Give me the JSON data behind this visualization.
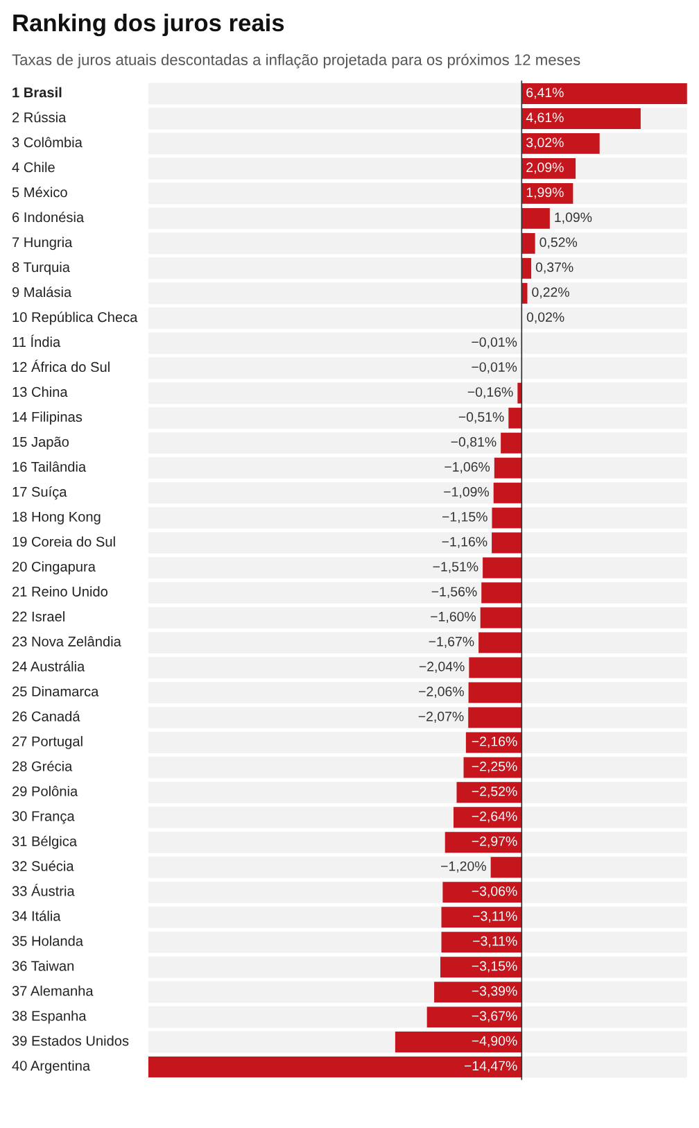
{
  "chart_data": {
    "type": "bar",
    "orientation": "horizontal",
    "title": "Ranking dos juros reais",
    "subtitle": "Taxas de juros atuais descontadas a inflação projetada para os próximos 12 meses",
    "categories": [
      "1 Brasil",
      "2 Rússia",
      "3 Colômbia",
      "4 Chile",
      "5 México",
      "6 Indonésia",
      "7 Hungria",
      "8 Turquia",
      "9 Malásia",
      "10 República Checa",
      "11 Índia",
      "12 África do Sul",
      "13 China",
      "14 Filipinas",
      "15 Japão",
      "16 Tailândia",
      "17 Suíça",
      "18 Hong Kong",
      "19 Coreia do Sul",
      "20 Cingapura",
      "21 Reino Unido",
      "22 Israel",
      "23 Nova Zelândia",
      "24 Austrália",
      "25 Dinamarca",
      "26 Canadá",
      "27 Portugal",
      "28 Grécia",
      "29 Polônia",
      "30 França",
      "31 Bélgica",
      "32 Suécia",
      "33 Áustria",
      "34 Itália",
      "35 Holanda",
      "36 Taiwan",
      "37 Alemanha",
      "38 Espanha",
      "39 Estados Unidos",
      "40 Argentina"
    ],
    "values": [
      6.41,
      4.61,
      3.02,
      2.09,
      1.99,
      1.09,
      0.52,
      0.37,
      0.22,
      0.02,
      -0.01,
      -0.01,
      -0.16,
      -0.51,
      -0.81,
      -1.06,
      -1.09,
      -1.15,
      -1.16,
      -1.51,
      -1.56,
      -1.6,
      -1.67,
      -2.04,
      -2.06,
      -2.07,
      -2.16,
      -2.25,
      -2.52,
      -2.64,
      -2.97,
      -1.2,
      -3.06,
      -3.11,
      -3.11,
      -3.15,
      -3.39,
      -3.67,
      -4.9,
      -14.47
    ],
    "value_labels": [
      "6,41%",
      "4,61%",
      "3,02%",
      "2,09%",
      "1,99%",
      "1,09%",
      "0,52%",
      "0,37%",
      "0,22%",
      "0,02%",
      "−0,01%",
      "−0,01%",
      "−0,16%",
      "−0,51%",
      "−0,81%",
      "−1,06%",
      "−1,09%",
      "−1,15%",
      "−1,16%",
      "−1,51%",
      "−1,56%",
      "−1,60%",
      "−1,67%",
      "−2,04%",
      "−2,06%",
      "−2,07%",
      "−2,16%",
      "−2,25%",
      "−2,52%",
      "−2,64%",
      "−2,97%",
      "−1,20%",
      "−3,06%",
      "−3,11%",
      "−3,11%",
      "−3,15%",
      "−3,39%",
      "−3,67%",
      "−4,90%",
      "−14,47%"
    ],
    "color": "#c4161c"
  }
}
